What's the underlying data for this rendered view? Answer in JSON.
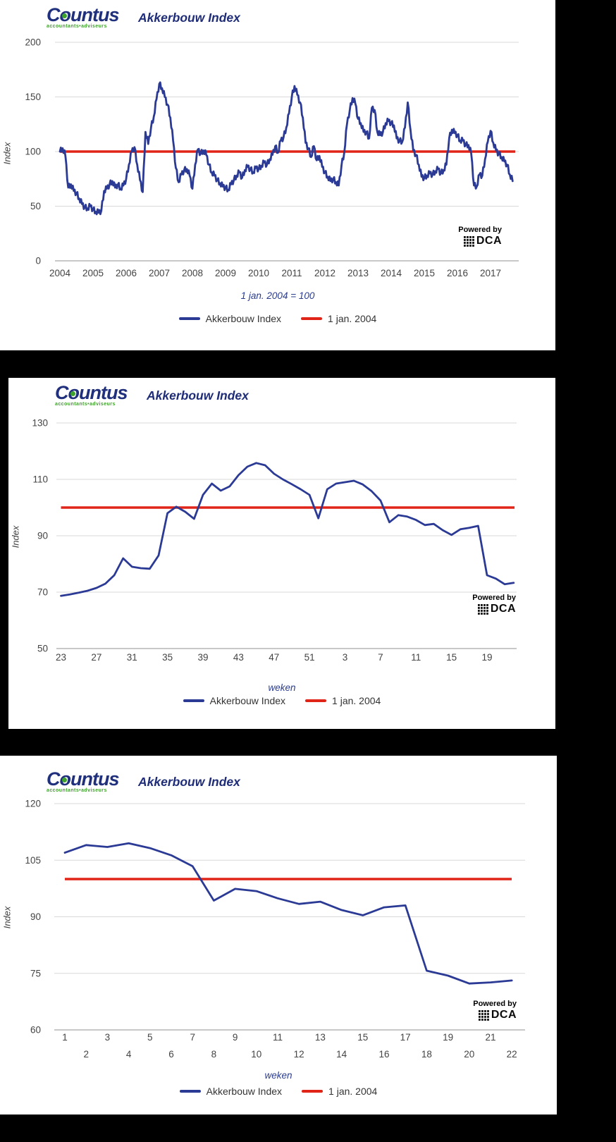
{
  "brand": {
    "logo_text": "Countus",
    "logo_sub": "accountants•adviseurs",
    "powered_by": "Powered by",
    "dca": "DCA"
  },
  "legend": {
    "series1": "Akkerbouw Index",
    "series2": "1 jan. 2004"
  },
  "colors": {
    "line_blue": "#2B3A94",
    "baseline_red": "#E02418",
    "navy_text": "#1F2C78",
    "green": "#3EA32A",
    "gridline": "#D9D9D9",
    "axis": "#A8A8A8",
    "tick_text": "#444444"
  },
  "charts": [
    {
      "title": "Akkerbouw Index",
      "ylabel": "Index",
      "subtitle": "1 jan. 2004 = 100",
      "xlabel": ""
    },
    {
      "title": "Akkerbouw Index",
      "ylabel": "Index",
      "subtitle": "",
      "xlabel": "weken"
    },
    {
      "title": "Akkerbouw Index",
      "ylabel": "Index",
      "subtitle": "",
      "xlabel": "weken"
    }
  ],
  "chart_data": [
    {
      "type": "line",
      "title": "Akkerbouw Index 2004-2017",
      "xlabel": "",
      "ylabel": "Index",
      "x_ticks": [
        "2004",
        "2005",
        "2006",
        "2007",
        "2008",
        "2009",
        "2010",
        "2011",
        "2012",
        "2013",
        "2014",
        "2015",
        "2016",
        "2017"
      ],
      "y_ticks": [
        200,
        150,
        100,
        50,
        0
      ],
      "ylim": [
        0,
        200
      ],
      "baseline_value": 100,
      "x_start_year": 2004,
      "points_per_year": 12,
      "series": [
        {
          "name": "Akkerbouw Index",
          "values": [
            100,
            103,
            96,
            67,
            70,
            64,
            62,
            57,
            52,
            49,
            48,
            50,
            47,
            45,
            44,
            46,
            64,
            66,
            70,
            73,
            67,
            70,
            66,
            69,
            75,
            88,
            100,
            104,
            88,
            74,
            63,
            118,
            107,
            122,
            132,
            148,
            162,
            158,
            150,
            143,
            131,
            110,
            85,
            72,
            79,
            83,
            84,
            78,
            66,
            88,
            102,
            98,
            101,
            97,
            88,
            81,
            78,
            74,
            71,
            68,
            67,
            65,
            70,
            74,
            78,
            81,
            76,
            83,
            86,
            84,
            81,
            85,
            84,
            87,
            90,
            88,
            93,
            97,
            105,
            99,
            110,
            113,
            122,
            135,
            150,
            160,
            152,
            145,
            131,
            108,
            103,
            95,
            105,
            92,
            96,
            86,
            81,
            77,
            73,
            75,
            72,
            69,
            87,
            99,
            125,
            138,
            149,
            144,
            130,
            126,
            118,
            118,
            112,
            140,
            138,
            118,
            115,
            118,
            126,
            128,
            126,
            124,
            112,
            110,
            109,
            122,
            145,
            120,
            101,
            97,
            88,
            77,
            76,
            78,
            80,
            79,
            82,
            84,
            80,
            83,
            88,
            112,
            120,
            117,
            115,
            110,
            110,
            106,
            106,
            98,
            69,
            68,
            79,
            78,
            93,
            109,
            119,
            108,
            101,
            98,
            95,
            91,
            88,
            79,
            73
          ]
        },
        {
          "name": "1 jan. 2004",
          "constant_value": 100
        }
      ]
    },
    {
      "type": "line",
      "title": "Akkerbouw Index rolling 52 weeks",
      "xlabel": "weken",
      "ylabel": "Index",
      "x_ticks": [
        "23",
        "27",
        "31",
        "35",
        "39",
        "43",
        "47",
        "51",
        "3",
        "7",
        "11",
        "15",
        "19"
      ],
      "y_ticks": [
        130,
        110,
        90,
        70,
        50
      ],
      "ylim": [
        50,
        130
      ],
      "baseline_value": 100,
      "week_start": 23,
      "series": [
        {
          "name": "Akkerbouw Index",
          "values": [
            68.7,
            69.2,
            69.8,
            70.5,
            71.5,
            73,
            76,
            82,
            79,
            78.5,
            78.3,
            83,
            98,
            100.3,
            98.5,
            96,
            104.5,
            108.5,
            106,
            107.5,
            111.5,
            114.5,
            115.8,
            115,
            112,
            110,
            108.3,
            106.5,
            104.5,
            96.2,
            106.5,
            108.5,
            109,
            109.5,
            108.2,
            105.8,
            102.5,
            94.8,
            97.3,
            96.8,
            95.6,
            93.8,
            94.2,
            92,
            90.3,
            92.3,
            92.8,
            93.5,
            76,
            74.8,
            72.8,
            73.3
          ]
        },
        {
          "name": "1 jan. 2004",
          "constant_value": 100
        }
      ]
    },
    {
      "type": "line",
      "title": "Akkerbouw Index weeks 1-22",
      "xlabel": "weken",
      "ylabel": "Index",
      "x_ticks": [
        "1",
        "2",
        "3",
        "4",
        "5",
        "6",
        "7",
        "8",
        "9",
        "10",
        "11",
        "12",
        "13",
        "14",
        "15",
        "16",
        "17",
        "18",
        "19",
        "20",
        "21",
        "22"
      ],
      "y_ticks": [
        120,
        105,
        90,
        75,
        60
      ],
      "ylim": [
        60,
        120
      ],
      "baseline_value": 100,
      "week_start": 1,
      "series": [
        {
          "name": "Akkerbouw Index",
          "values": [
            107,
            109,
            108.5,
            109.5,
            108.2,
            106.3,
            103.4,
            94.3,
            97.4,
            96.8,
            94.9,
            93.4,
            94,
            91.8,
            90.4,
            92.5,
            93,
            75.7,
            74.4,
            72.3,
            72.6,
            73.1
          ]
        },
        {
          "name": "1 jan. 2004",
          "constant_value": 100
        }
      ]
    }
  ]
}
